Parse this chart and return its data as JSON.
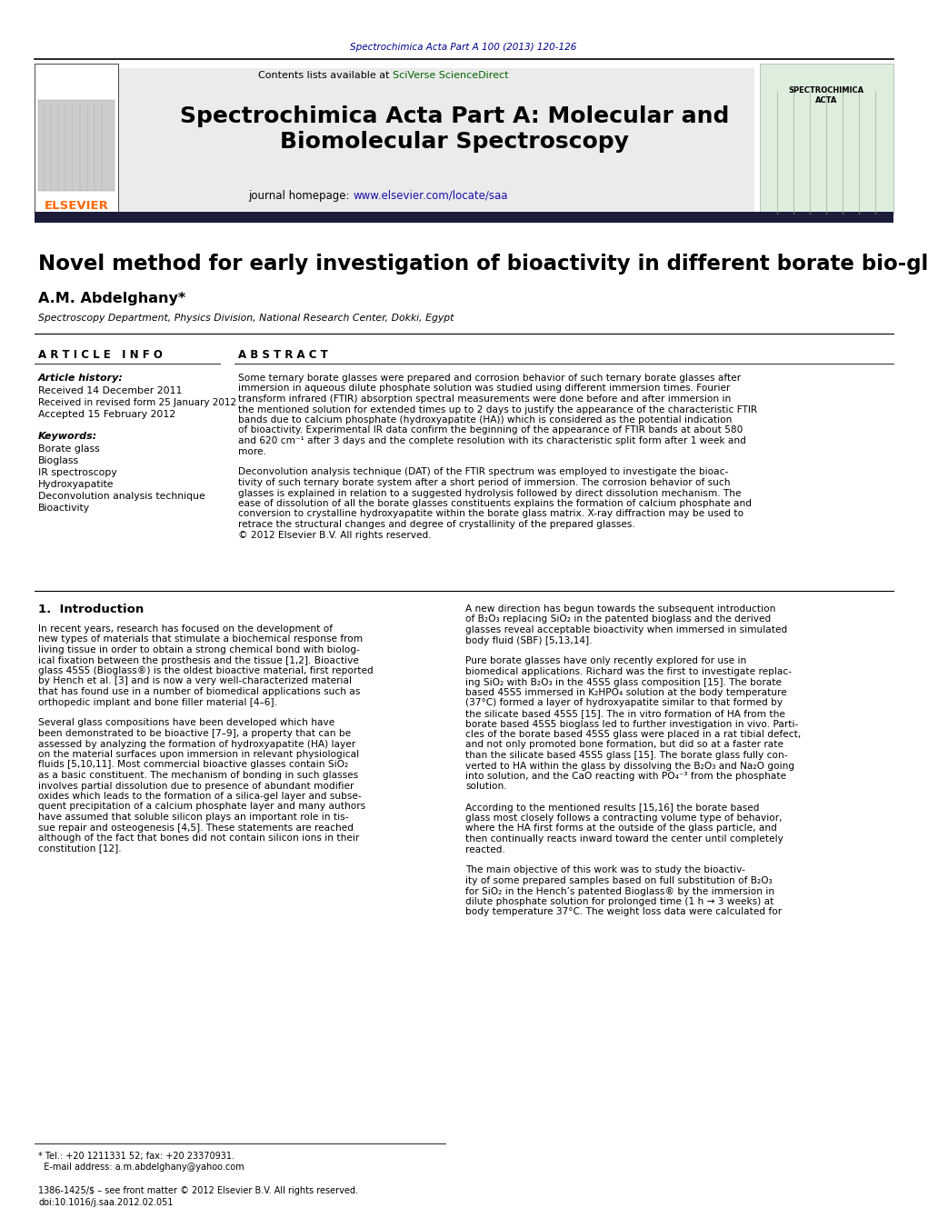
{
  "page_title": "Spectrochimica Acta Part A 100 (2013) 120-126",
  "journal_name": "Spectrochimica Acta Part A: Molecular and\nBiomolecular Spectroscopy",
  "journal_homepage_text": "journal homepage: ",
  "journal_homepage_url": "www.elsevier.com/locate/saa",
  "contents_text": "Contents lists available at ",
  "sciverse_text": "SciVerse ScienceDirect",
  "article_title": "Novel method for early investigation of bioactivity in different borate bio-glasses",
  "author": "A.M. Abdelghany*",
  "affiliation": "Spectroscopy Department, Physics Division, National Research Center, Dokki, Egypt",
  "article_info_header": "A R T I C L E   I N F O",
  "abstract_header": "A B S T R A C T",
  "article_history_label": "Article history:",
  "received": "Received 14 December 2011",
  "received_revised": "Received in revised form 25 January 2012",
  "accepted": "Accepted 15 February 2012",
  "keywords_label": "Keywords:",
  "keywords": [
    "Borate glass",
    "Bioglass",
    "IR spectroscopy",
    "Hydroxyapatite",
    "Deconvolution analysis technique",
    "Bioactivity"
  ],
  "section1_header": "1.  Introduction",
  "intro_left_lines": [
    "In recent years, research has focused on the development of",
    "new types of materials that stimulate a biochemical response from",
    "living tissue in order to obtain a strong chemical bond with biolog-",
    "ical fixation between the prosthesis and the tissue [1,2]. Bioactive",
    "glass 45S5 (Bioglass®) is the oldest bioactive material, first reported",
    "by Hench et al. [3] and is now a very well-characterized material",
    "that has found use in a number of biomedical applications such as",
    "orthopedic implant and bone filler material [4–6].",
    "",
    "Several glass compositions have been developed which have",
    "been demonstrated to be bioactive [7–9], a property that can be",
    "assessed by analyzing the formation of hydroxyapatite (HA) layer",
    "on the material surfaces upon immersion in relevant physiological",
    "fluids [5,10,11]. Most commercial bioactive glasses contain SiO₂",
    "as a basic constituent. The mechanism of bonding in such glasses",
    "involves partial dissolution due to presence of abundant modifier",
    "oxides which leads to the formation of a silica-gel layer and subse-",
    "quent precipitation of a calcium phosphate layer and many authors",
    "have assumed that soluble silicon plays an important role in tis-",
    "sue repair and osteogenesis [4,5]. These statements are reached",
    "although of the fact that bones did not contain silicon ions in their",
    "constitution [12]."
  ],
  "intro_right_lines": [
    "A new direction has begun towards the subsequent introduction",
    "of B₂O₃ replacing SiO₂ in the patented bioglass and the derived",
    "glasses reveal acceptable bioactivity when immersed in simulated",
    "body fluid (SBF) [5,13,14].",
    "",
    "Pure borate glasses have only recently explored for use in",
    "biomedical applications. Richard was the first to investigate replac-",
    "ing SiO₂ with B₂O₃ in the 45S5 glass composition [15]. The borate",
    "based 45S5 immersed in K₂HPO₄ solution at the body temperature",
    "(37°C) formed a layer of hydroxyapatite similar to that formed by",
    "the silicate based 45S5 [15]. The in vitro formation of HA from the",
    "borate based 45S5 bioglass led to further investigation in vivo. Parti-",
    "cles of the borate based 45S5 glass were placed in a rat tibial defect,",
    "and not only promoted bone formation, but did so at a faster rate",
    "than the silicate based 45S5 glass [15]. The borate glass fully con-",
    "verted to HA within the glass by dissolving the B₂O₃ and Na₂O going",
    "into solution, and the CaO reacting with PO₄⁻³ from the phosphate",
    "solution.",
    "",
    "According to the mentioned results [15,16] the borate based",
    "glass most closely follows a contracting volume type of behavior,",
    "where the HA first forms at the outside of the glass particle, and",
    "then continually reacts inward toward the center until completely",
    "reacted.",
    "",
    "The main objective of this work was to study the bioactiv-",
    "ity of some prepared samples based on full substitution of B₂O₃",
    "for SiO₂ in the Hench’s patented Bioglass® by the immersion in",
    "dilute phosphate solution for prolonged time (1 h → 3 weeks) at",
    "body temperature 37°C. The weight loss data were calculated for"
  ],
  "abstract_lines": [
    "Some ternary borate glasses were prepared and corrosion behavior of such ternary borate glasses after",
    "immersion in aqueous dilute phosphate solution was studied using different immersion times. Fourier",
    "transform infrared (FTIR) absorption spectral measurements were done before and after immersion in",
    "the mentioned solution for extended times up to 2 days to justify the appearance of the characteristic FTIR",
    "bands due to calcium phosphate (hydroxyapatite (HA)) which is considered as the potential indication",
    "of bioactivity. Experimental IR data confirm the beginning of the appearance of FTIR bands at about 580",
    "and 620 cm⁻¹ after 3 days and the complete resolution with its characteristic split form after 1 week and",
    "more.",
    "",
    "Deconvolution analysis technique (DAT) of the FTIR spectrum was employed to investigate the bioac-",
    "tivity of such ternary borate system after a short period of immersion. The corrosion behavior of such",
    "glasses is explained in relation to a suggested hydrolysis followed by direct dissolution mechanism. The",
    "ease of dissolution of all the borate glasses constituents explains the formation of calcium phosphate and",
    "conversion to crystalline hydroxyapatite within the borate glass matrix. X-ray diffraction may be used to",
    "retrace the structural changes and degree of crystallinity of the prepared glasses.",
    "© 2012 Elsevier B.V. All rights reserved."
  ],
  "footnote_line1": "* Tel.: +20 1211331 52; fax: +20 23370931.",
  "footnote_line2": "  E-mail address: a.m.abdelghany@yahoo.com",
  "issn": "1386-1425/$ – see front matter © 2012 Elsevier B.V. All rights reserved.",
  "doi": "doi:10.1016/j.saa.2012.02.051",
  "elsevier_color": "#FF6600",
  "dark_navy": "#00008B",
  "link_color": "#1a0dab",
  "sciverse_color": "#006600",
  "header_bg": "#EBEBEB",
  "dark_bar_color": "#1C1C3A",
  "page_bg": "#FFFFFF"
}
